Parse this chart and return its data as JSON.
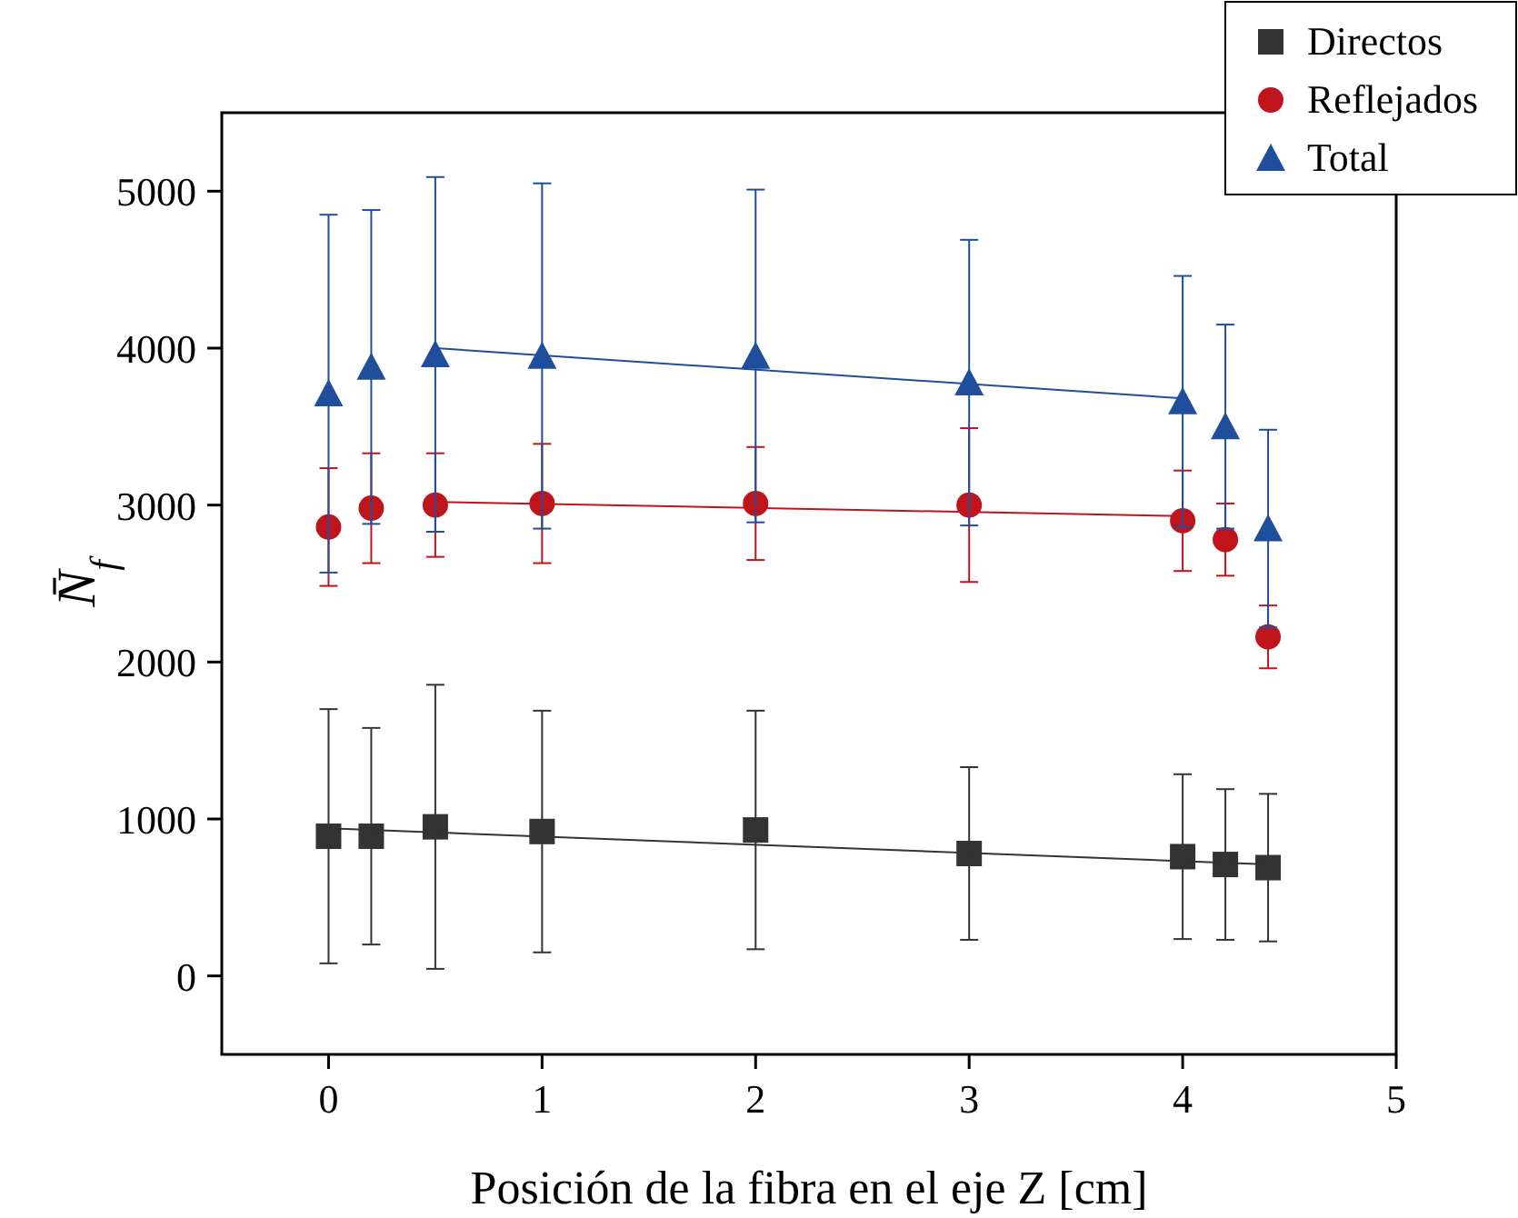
{
  "chart_data": {
    "type": "scatter",
    "xlabel": "Posición de la fibra en el eje Z [cm]",
    "ylabel": "N̄$_{f}$",
    "xlim": [
      -0.5,
      5
    ],
    "ylim": [
      -500,
      5500
    ],
    "xticks": [
      0,
      1,
      2,
      3,
      4,
      5
    ],
    "yticks": [
      0,
      1000,
      2000,
      3000,
      4000,
      5000
    ],
    "grid": false,
    "legend": "top right",
    "series": [
      {
        "name": "Directos",
        "color": "#333333",
        "marker": "square",
        "x": [
          0,
          0.2,
          0.5,
          1,
          2,
          3,
          4,
          4.2,
          4.4
        ],
        "values": [
          890,
          890,
          950,
          920,
          930,
          780,
          760,
          710,
          690
        ],
        "errors": [
          810,
          690,
          905,
          770,
          760,
          550,
          525,
          480,
          470
        ]
      },
      {
        "name": "Reflejados",
        "color": "#c0141c",
        "marker": "circle",
        "x": [
          0,
          0.2,
          0.5,
          1,
          2,
          3,
          4,
          4.2,
          4.4
        ],
        "values": [
          2860,
          2980,
          3000,
          3010,
          3010,
          3000,
          2900,
          2780,
          2160
        ],
        "errors": [
          375,
          350,
          330,
          380,
          360,
          490,
          320,
          230,
          200
        ]
      },
      {
        "name": "Total",
        "color": "#1f4e9c",
        "marker": "triangle",
        "x": [
          0,
          0.2,
          0.5,
          1,
          2,
          3,
          4,
          4.2,
          4.4
        ],
        "values": [
          3710,
          3880,
          3960,
          3950,
          3950,
          3780,
          3660,
          3500,
          2850
        ],
        "errors": [
          1140,
          1000,
          1130,
          1100,
          1060,
          910,
          800,
          650,
          630
        ]
      },
      {
        "type": "line",
        "color": "#333333",
        "marker": "none",
        "x": [
          0,
          4.4
        ],
        "values": [
          940,
          710
        ]
      },
      {
        "type": "line",
        "color": "#c0141c",
        "marker": "none",
        "x": [
          0.5,
          4
        ],
        "values": [
          3020,
          2930
        ]
      },
      {
        "type": "line",
        "color": "#1f4e9c",
        "marker": "none",
        "x": [
          0.5,
          4
        ],
        "values": [
          4000,
          3680
        ]
      }
    ]
  }
}
